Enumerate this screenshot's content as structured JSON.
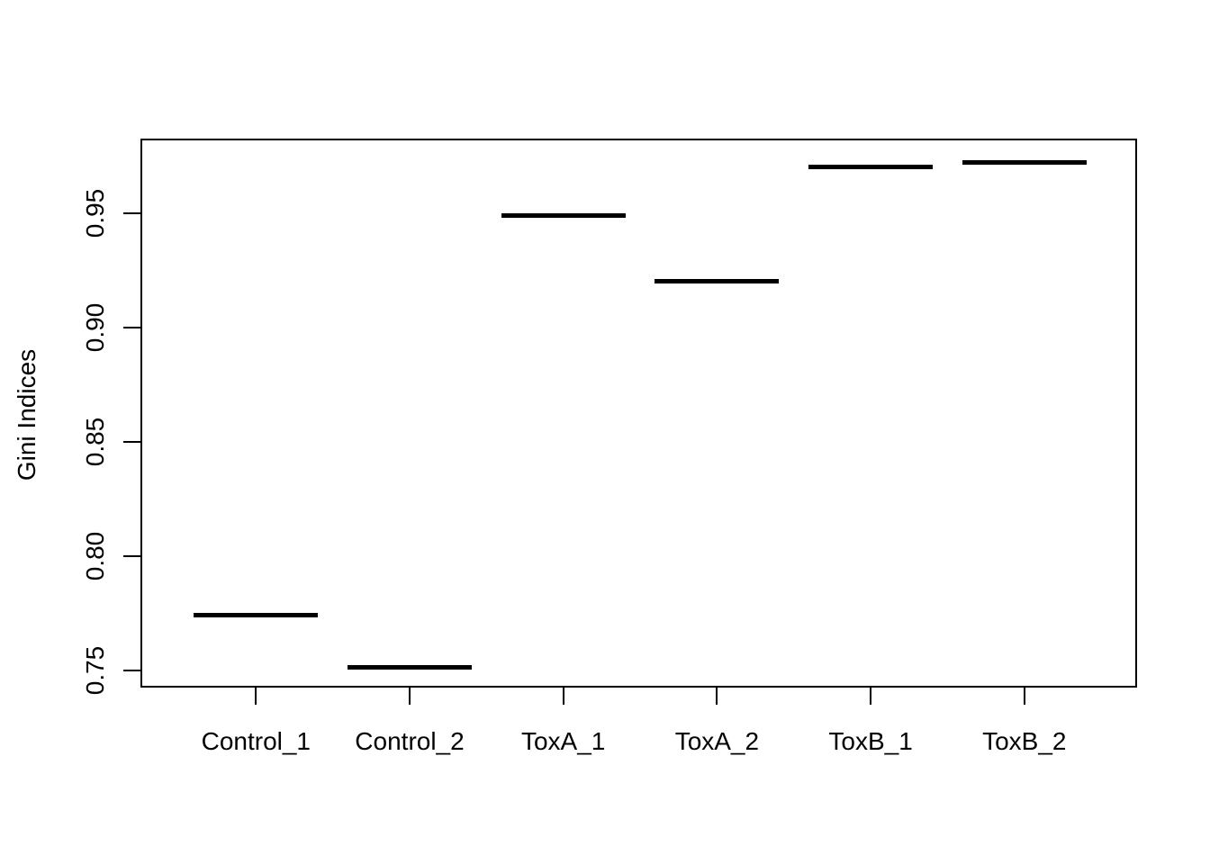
{
  "figure": {
    "background_color": "#ffffff",
    "foreground_color": "#000000"
  },
  "chart_data": {
    "type": "boxplot",
    "style_note": "R base boxplot with one value per group; each box degenerates to a single thick horizontal median line",
    "title": "",
    "xlabel": "",
    "ylabel": "Gini Indices",
    "categories": [
      "Control_1",
      "Control_2",
      "ToxA_1",
      "ToxA_2",
      "ToxB_1",
      "ToxB_2"
    ],
    "values": [
      0.774,
      0.751,
      0.949,
      0.92,
      0.97,
      0.972
    ],
    "ytick_values": [
      0.75,
      0.8,
      0.85,
      0.9,
      0.95
    ],
    "ytick_labels": [
      "0.75",
      "0.80",
      "0.85",
      "0.90",
      "0.95"
    ],
    "ylim": [
      0.743,
      0.982
    ],
    "grid": false,
    "legend": null,
    "line_color": "#000000"
  }
}
